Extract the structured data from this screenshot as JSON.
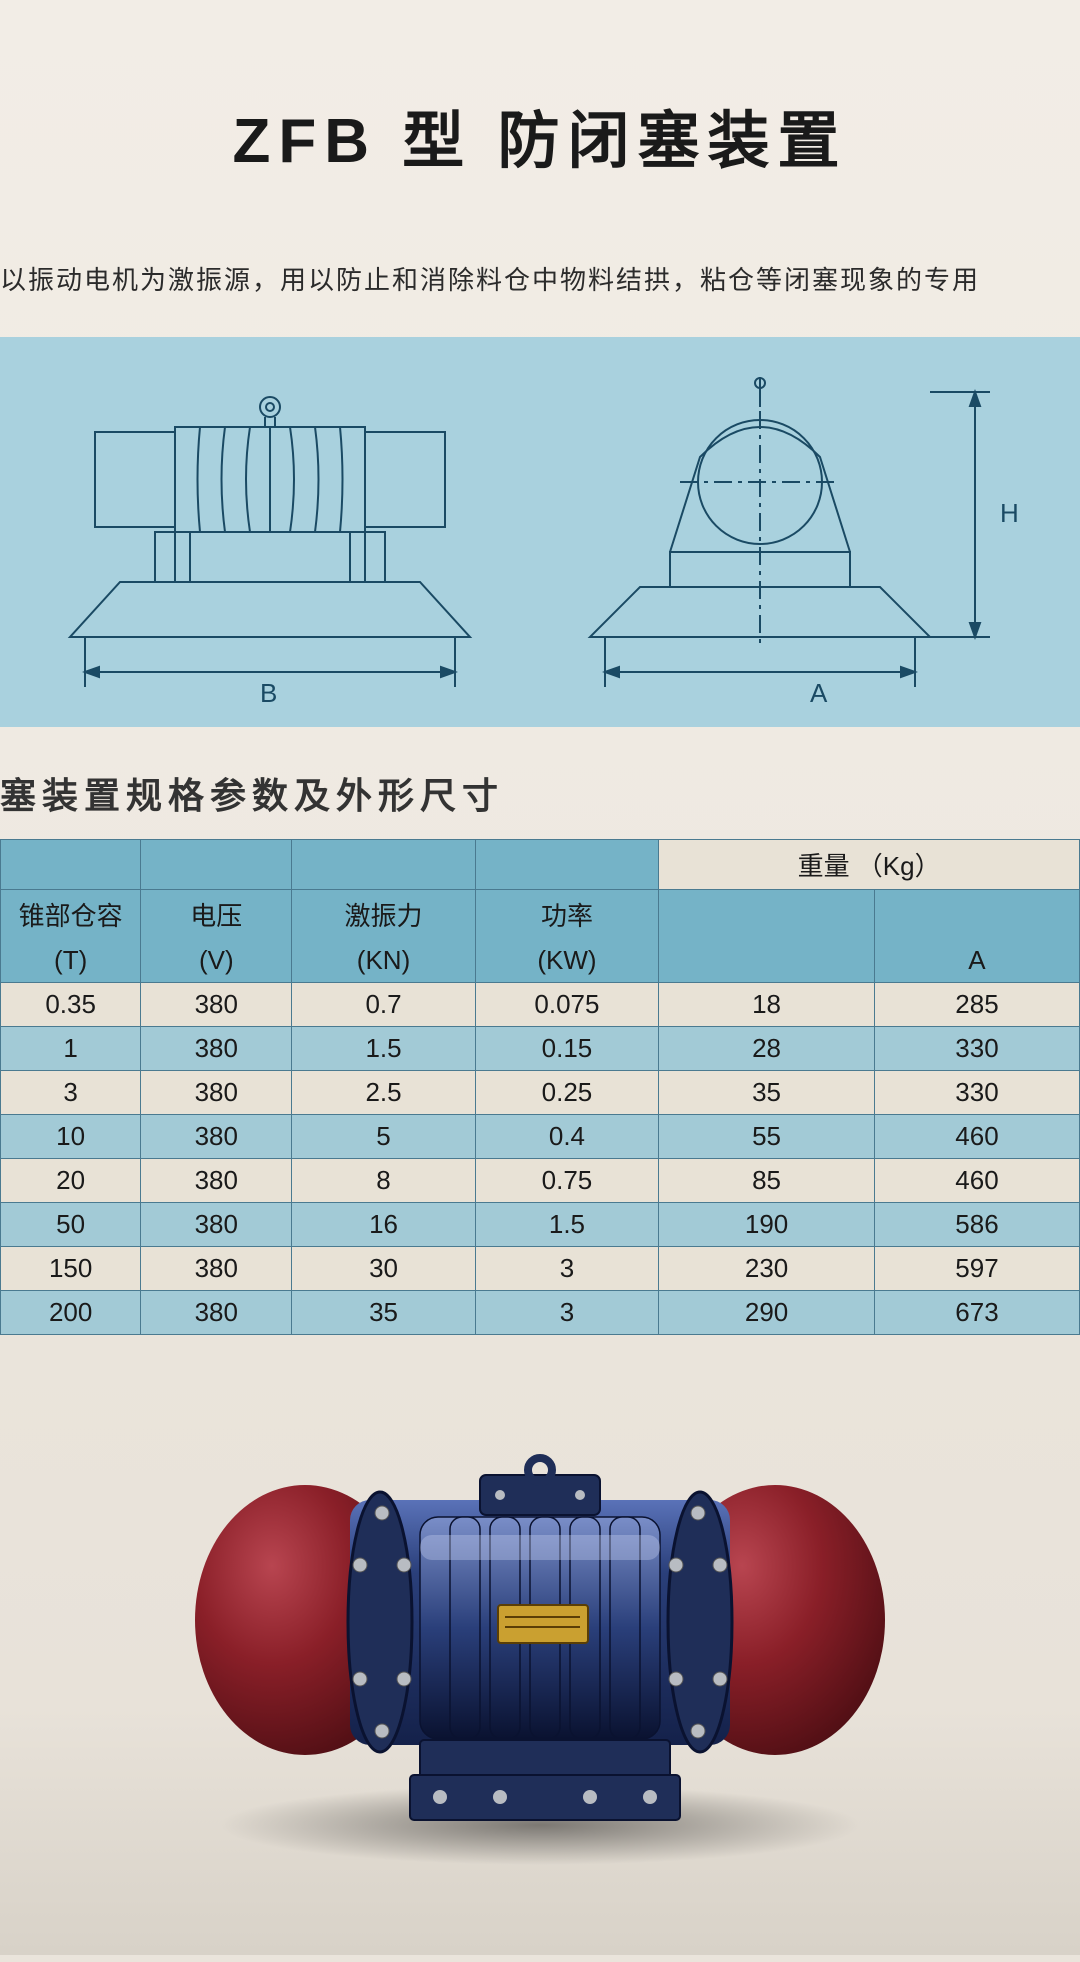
{
  "title": "ZFB 型  防闭塞装置",
  "description": "以振动电机为激振源，用以防止和消除料仓中物料结拱，粘仓等闭塞现象的专用",
  "diagram": {
    "background_color": "#a9d1de",
    "line_color": "#1a4a64",
    "line_width": 2,
    "labels": {
      "left_dim": "B",
      "right_dim_top": "H",
      "right_dim_bottom": "A"
    }
  },
  "table_title": "塞装置规格参数及外形尺寸",
  "table": {
    "top_header": {
      "weight_label": "重量",
      "weight_unit": "（Kg）"
    },
    "headers": [
      {
        "l1": "锥部仓容",
        "l2": "(T)"
      },
      {
        "l1": "电压",
        "l2": "(V)"
      },
      {
        "l1": "激振力",
        "l2": "(KN)"
      },
      {
        "l1": "功率",
        "l2": "(KW)"
      },
      {
        "l1": "",
        "l2": ""
      },
      {
        "l1": "",
        "l2": "A"
      }
    ],
    "header_bg": "#75b3c7",
    "row_alt_bg": "#a2cad6",
    "row_bg": "#e8e2d6",
    "border_color": "#4a7a90",
    "rows": [
      [
        "0.35",
        "380",
        "0.7",
        "0.075",
        "18",
        "285"
      ],
      [
        "1",
        "380",
        "1.5",
        "0.15",
        "28",
        "330"
      ],
      [
        "3",
        "380",
        "2.5",
        "0.25",
        "35",
        "330"
      ],
      [
        "10",
        "380",
        "5",
        "0.4",
        "55",
        "460"
      ],
      [
        "20",
        "380",
        "8",
        "0.75",
        "85",
        "460"
      ],
      [
        "50",
        "380",
        "16",
        "1.5",
        "190",
        "586"
      ],
      [
        "150",
        "380",
        "30",
        "3",
        "230",
        "597"
      ],
      [
        "200",
        "380",
        "35",
        "3",
        "290",
        "673"
      ]
    ],
    "col_widths_pct": [
      13,
      14,
      17,
      17,
      20,
      19
    ]
  },
  "photo": {
    "body_color": "#2a3f7a",
    "body_dark": "#14214a",
    "body_highlight": "#5a72b8",
    "endcap_color": "#8a1f28",
    "endcap_dark": "#4a0d12",
    "endcap_highlight": "#b84550",
    "plate_color": "#caa030",
    "bolt_color": "#b8bcc2"
  }
}
